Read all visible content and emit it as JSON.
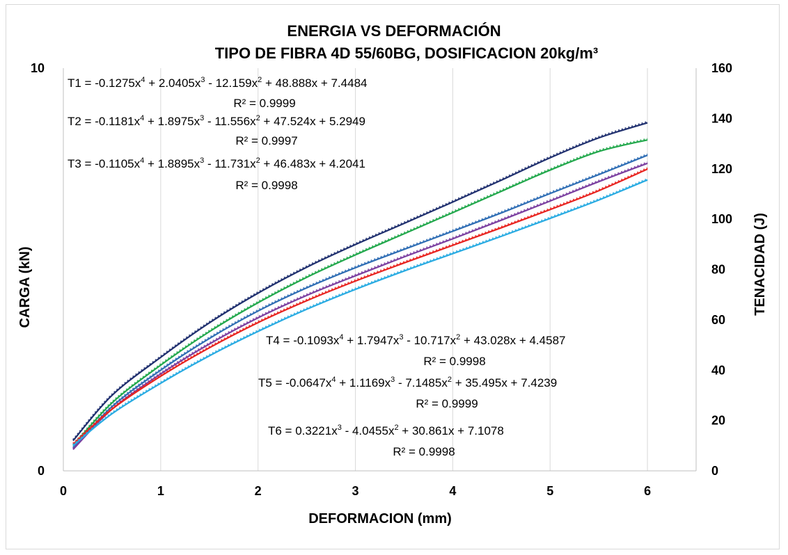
{
  "chart_data": {
    "type": "line",
    "title": "ENERGIA VS DEFORMACIÓN",
    "subtitle": "TIPO DE FIBRA 4D 55/60BG,  DOSIFICACION 20kg/m³",
    "xlabel": "DEFORMACION (mm)",
    "ylabel": "CARGA (kN)",
    "y2label": "TENACIDAD (J)",
    "xlim": [
      0,
      6.5
    ],
    "ylim": [
      0,
      10
    ],
    "y2lim": [
      0,
      160
    ],
    "x_ticks": [
      "0",
      "1",
      "2",
      "3",
      "4",
      "5",
      "6"
    ],
    "y_ticks": [
      "0",
      "10"
    ],
    "y2_ticks": [
      "0",
      "20",
      "40",
      "60",
      "80",
      "100",
      "120",
      "140",
      "160"
    ],
    "grid": "vertical",
    "series": [
      {
        "color": "#1f2f6e",
        "axis": "y2",
        "x": [
          0.1,
          0.5,
          1,
          1.5,
          2,
          2.5,
          3,
          3.5,
          4,
          4.5,
          5,
          5.5,
          6
        ],
        "y": [
          12.0,
          30.0,
          45.1,
          58.8,
          70.6,
          80.9,
          89.9,
          98.3,
          106.8,
          115.5,
          124.4,
          132.3,
          138.3
        ]
      },
      {
        "color": "#22a84c",
        "axis": "y2",
        "x": [
          0.1,
          0.5,
          1,
          1.5,
          2,
          2.5,
          3,
          3.5,
          4,
          4.5,
          5,
          5.5,
          6
        ],
        "y": [
          10.0,
          27.0,
          42.0,
          55.3,
          66.8,
          76.9,
          85.8,
          94.2,
          102.6,
          111.1,
          119.5,
          126.9,
          131.5
        ]
      },
      {
        "color": "#2e6db4",
        "axis": "y2",
        "x": [
          0.1,
          0.5,
          1,
          1.5,
          2,
          2.5,
          3,
          3.5,
          4,
          4.5,
          5,
          5.5,
          6
        ],
        "y": [
          9.0,
          25.5,
          40.0,
          52.6,
          63.5,
          72.7,
          80.7,
          88.0,
          95.2,
          102.5,
          110.2,
          117.7,
          125.4
        ]
      },
      {
        "color": "#7b3fa0",
        "axis": "y2",
        "x": [
          0.1,
          0.5,
          1,
          1.5,
          2,
          2.5,
          3,
          3.5,
          4,
          4.5,
          5,
          5.5,
          6
        ],
        "y": [
          8.5,
          24.5,
          38.5,
          50.4,
          60.8,
          69.7,
          77.5,
          85.0,
          92.2,
          99.6,
          107.2,
          114.9,
          122.2
        ]
      },
      {
        "color": "#e8231f",
        "axis": "y2",
        "x": [
          0.1,
          0.5,
          1,
          1.5,
          2,
          2.5,
          3,
          3.5,
          4,
          4.5,
          5,
          5.5,
          6
        ],
        "y": [
          10.5,
          24.5,
          37.6,
          48.9,
          58.9,
          67.6,
          75.4,
          82.6,
          89.6,
          96.6,
          103.8,
          111.3,
          119.9
        ]
      },
      {
        "color": "#29abe2",
        "axis": "y2",
        "x": [
          0.1,
          0.5,
          1,
          1.5,
          2,
          2.5,
          3,
          3.5,
          4,
          4.5,
          5,
          5.5,
          6
        ],
        "y": [
          10.0,
          22.7,
          34.8,
          45.7,
          55.4,
          64.2,
          72.1,
          79.4,
          86.3,
          93.2,
          100.3,
          107.6,
          115.6
        ]
      }
    ],
    "annotations": [
      {
        "eq_prefix": "T1 = -0.1275x",
        "eq_rest": [
          [
            "4",
            " + 2.0405x"
          ],
          [
            "3",
            " - 12.159x"
          ],
          [
            "2",
            " + 48.888x + 7.4484"
          ]
        ],
        "r2": "R² = 0.9999"
      },
      {
        "eq_prefix": "T2 = -0.1181x",
        "eq_rest": [
          [
            "4",
            " + 1.8975x"
          ],
          [
            "3",
            " - 11.556x"
          ],
          [
            "2",
            " + 47.524x + 5.2949"
          ]
        ],
        "r2": "R² = 0.9997"
      },
      {
        "eq_prefix": "T3 = -0.1105x",
        "eq_rest": [
          [
            "4",
            " + 1.8895x"
          ],
          [
            "3",
            " - 11.731x"
          ],
          [
            "2",
            " + 46.483x + 4.2041"
          ]
        ],
        "r2": "R² = 0.9998"
      },
      {
        "eq_prefix": "T4 = -0.1093x",
        "eq_rest": [
          [
            "4",
            " + 1.7947x"
          ],
          [
            "3",
            " - 10.717x"
          ],
          [
            "2",
            " + 43.028x + 4.4587"
          ]
        ],
        "r2": "R² = 0.9998"
      },
      {
        "eq_prefix": "T5 = -0.0647x",
        "eq_rest": [
          [
            "4",
            " + 1.1169x"
          ],
          [
            "3",
            " - 7.1485x"
          ],
          [
            "2",
            " + 35.495x + 7.4239"
          ]
        ],
        "r2": "R² = 0.9999"
      },
      {
        "eq_prefix": "T6 = 0.3221x",
        "eq_rest": [
          [
            "3",
            " - 4.0455x"
          ],
          [
            "2",
            " + 30.861x + 7.1078"
          ]
        ],
        "r2": "R² = 0.9998"
      }
    ]
  }
}
